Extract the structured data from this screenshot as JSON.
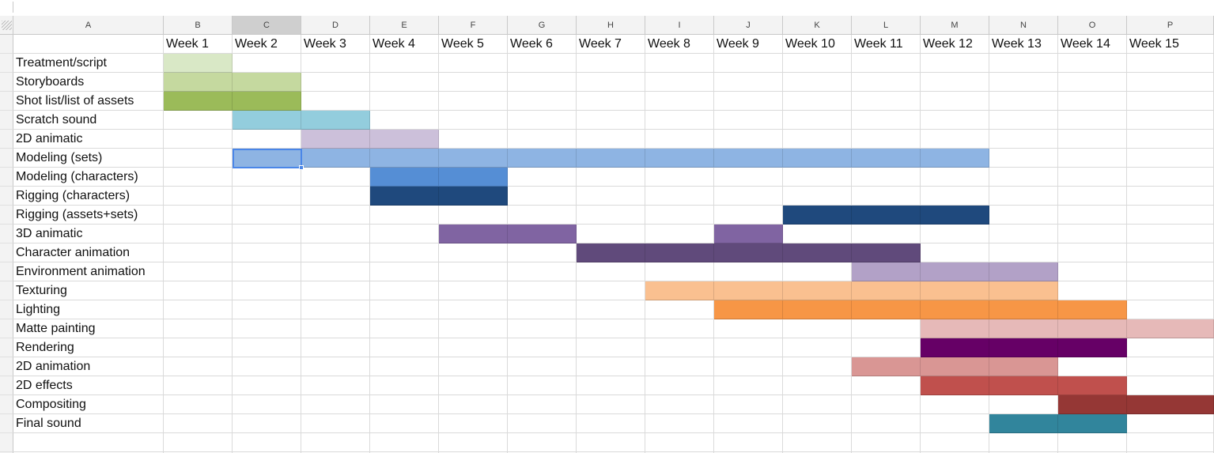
{
  "columns": [
    "A",
    "B",
    "C",
    "D",
    "E",
    "F",
    "G",
    "H",
    "I",
    "J",
    "K",
    "L",
    "M",
    "N",
    "O",
    "P"
  ],
  "selected_column": "C",
  "selected_cell": {
    "row": 6,
    "col": 2
  },
  "week_labels": [
    "Week 1",
    "Week 2",
    "Week 3",
    "Week 4",
    "Week 5",
    "Week 6",
    "Week 7",
    "Week 8",
    "Week 9",
    "Week 10",
    "Week 11",
    "Week 12",
    "Week 13",
    "Week 14",
    "Week 15"
  ],
  "tasks": [
    {
      "name": "Treatment/script",
      "segments": [
        {
          "start_week": 1,
          "end_week": 1,
          "color": "#d9e8c6"
        }
      ]
    },
    {
      "name": "Storyboards",
      "segments": [
        {
          "start_week": 1,
          "end_week": 2,
          "color": "#c5d99f"
        }
      ]
    },
    {
      "name": "Shot list/list of assets",
      "segments": [
        {
          "start_week": 1,
          "end_week": 2,
          "color": "#9bbb59"
        }
      ]
    },
    {
      "name": "Scratch sound",
      "segments": [
        {
          "start_week": 2,
          "end_week": 3,
          "color": "#93cddd"
        }
      ]
    },
    {
      "name": "2D animatic",
      "segments": [
        {
          "start_week": 3,
          "end_week": 4,
          "color": "#ccc0da"
        }
      ]
    },
    {
      "name": "Modeling (sets)",
      "segments": [
        {
          "start_week": 2,
          "end_week": 12,
          "color": "#8eb4e3"
        }
      ]
    },
    {
      "name": "Modeling (characters)",
      "segments": [
        {
          "start_week": 4,
          "end_week": 5,
          "color": "#558ed5"
        }
      ]
    },
    {
      "name": "Rigging (characters)",
      "segments": [
        {
          "start_week": 4,
          "end_week": 5,
          "color": "#1f497d"
        }
      ]
    },
    {
      "name": "Rigging (assets+sets)",
      "segments": [
        {
          "start_week": 10,
          "end_week": 12,
          "color": "#1f497d"
        }
      ]
    },
    {
      "name": "3D animatic",
      "segments": [
        {
          "start_week": 5,
          "end_week": 6,
          "color": "#8064a2"
        },
        {
          "start_week": 9,
          "end_week": 9,
          "color": "#8064a2"
        }
      ]
    },
    {
      "name": "Character animation",
      "segments": [
        {
          "start_week": 7,
          "end_week": 11,
          "color": "#604a7b"
        }
      ]
    },
    {
      "name": "Environment animation",
      "segments": [
        {
          "start_week": 11,
          "end_week": 13,
          "color": "#b2a1c7"
        }
      ]
    },
    {
      "name": "Texturing",
      "segments": [
        {
          "start_week": 8,
          "end_week": 13,
          "color": "#fac090"
        }
      ]
    },
    {
      "name": "Lighting",
      "segments": [
        {
          "start_week": 9,
          "end_week": 14,
          "color": "#f79646"
        }
      ]
    },
    {
      "name": "Matte painting",
      "segments": [
        {
          "start_week": 12,
          "end_week": 15,
          "color": "#e6b9b8"
        }
      ]
    },
    {
      "name": "Rendering",
      "segments": [
        {
          "start_week": 12,
          "end_week": 14,
          "color": "#660066"
        }
      ]
    },
    {
      "name": "2D animation",
      "segments": [
        {
          "start_week": 11,
          "end_week": 13,
          "color": "#d99694"
        }
      ]
    },
    {
      "name": "2D effects",
      "segments": [
        {
          "start_week": 12,
          "end_week": 14,
          "color": "#c0504d"
        }
      ]
    },
    {
      "name": "Compositing",
      "segments": [
        {
          "start_week": 14,
          "end_week": 15,
          "color": "#953735"
        }
      ]
    },
    {
      "name": "Final sound",
      "segments": [
        {
          "start_week": 13,
          "end_week": 14,
          "color": "#31859c"
        }
      ]
    }
  ]
}
